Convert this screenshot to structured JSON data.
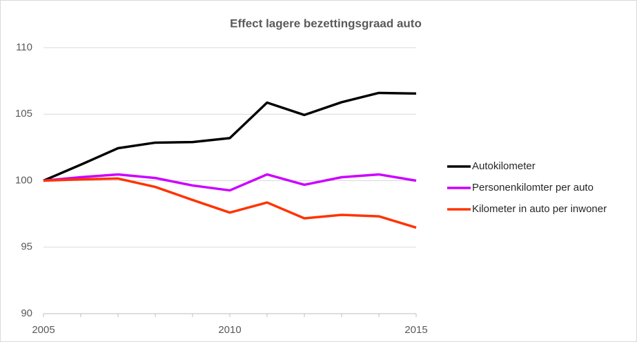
{
  "chart_data": {
    "type": "line",
    "title": "Effect lagere bezettingsgraad auto",
    "x": [
      2005,
      2006,
      2007,
      2008,
      2009,
      2010,
      2011,
      2012,
      2013,
      2014,
      2015
    ],
    "series": [
      {
        "name": "Autokilometer",
        "color": "#000000",
        "values": [
          100,
          101.2,
          102.44,
          102.86,
          102.9,
          103.2,
          105.87,
          104.94,
          105.9,
          106.6,
          106.55
        ]
      },
      {
        "name": "Personenkilomter per auto",
        "color": "#cc00ff",
        "values": [
          100,
          100.26,
          100.47,
          100.2,
          99.64,
          99.27,
          100.47,
          99.69,
          100.26,
          100.47,
          100
        ]
      },
      {
        "name": "Kilometer in auto per inwoner",
        "color": "#ff3300",
        "values": [
          100,
          100.1,
          100.16,
          99.53,
          98.55,
          97.6,
          98.36,
          97.17,
          97.43,
          97.32,
          96.47
        ]
      }
    ],
    "xlim": [
      2005,
      2015
    ],
    "xticks": [
      2005,
      2010,
      2015
    ],
    "ylim": [
      90,
      110
    ],
    "yticks": [
      90,
      95,
      100,
      105,
      110
    ],
    "grid": true,
    "legend": "right"
  }
}
